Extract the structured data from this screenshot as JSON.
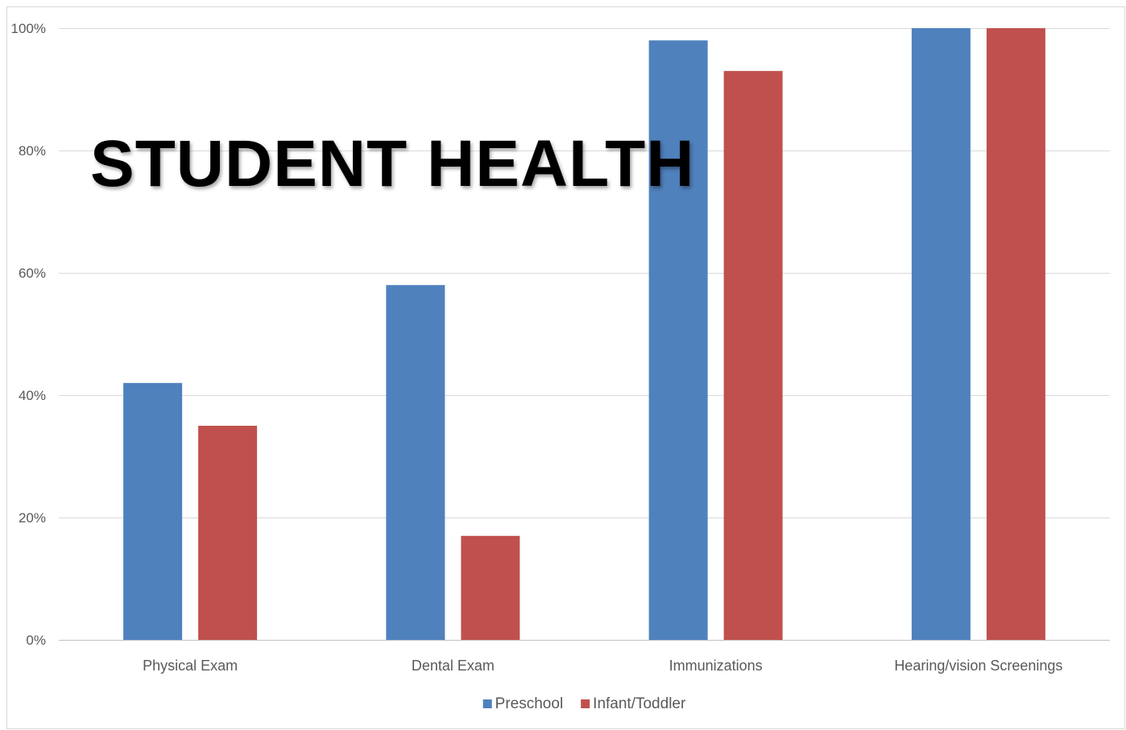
{
  "chart_data": {
    "type": "bar",
    "title": "STUDENT HEALTH",
    "categories": [
      "Physical Exam",
      "Dental Exam",
      "Immunizations",
      "Hearing/vision Screenings"
    ],
    "series": [
      {
        "name": "Preschool",
        "color": "#4f81bd",
        "values": [
          42,
          58,
          98,
          100
        ]
      },
      {
        "name": "Infant/Toddler",
        "color": "#c0504d",
        "values": [
          35,
          17,
          93,
          100
        ]
      }
    ],
    "ylim": [
      0,
      100
    ],
    "yticks": [
      0,
      20,
      40,
      60,
      80,
      100
    ],
    "ytick_labels": [
      "0%",
      "20%",
      "40%",
      "60%",
      "80%",
      "100%"
    ],
    "grid": true,
    "legend_position": "bottom"
  }
}
